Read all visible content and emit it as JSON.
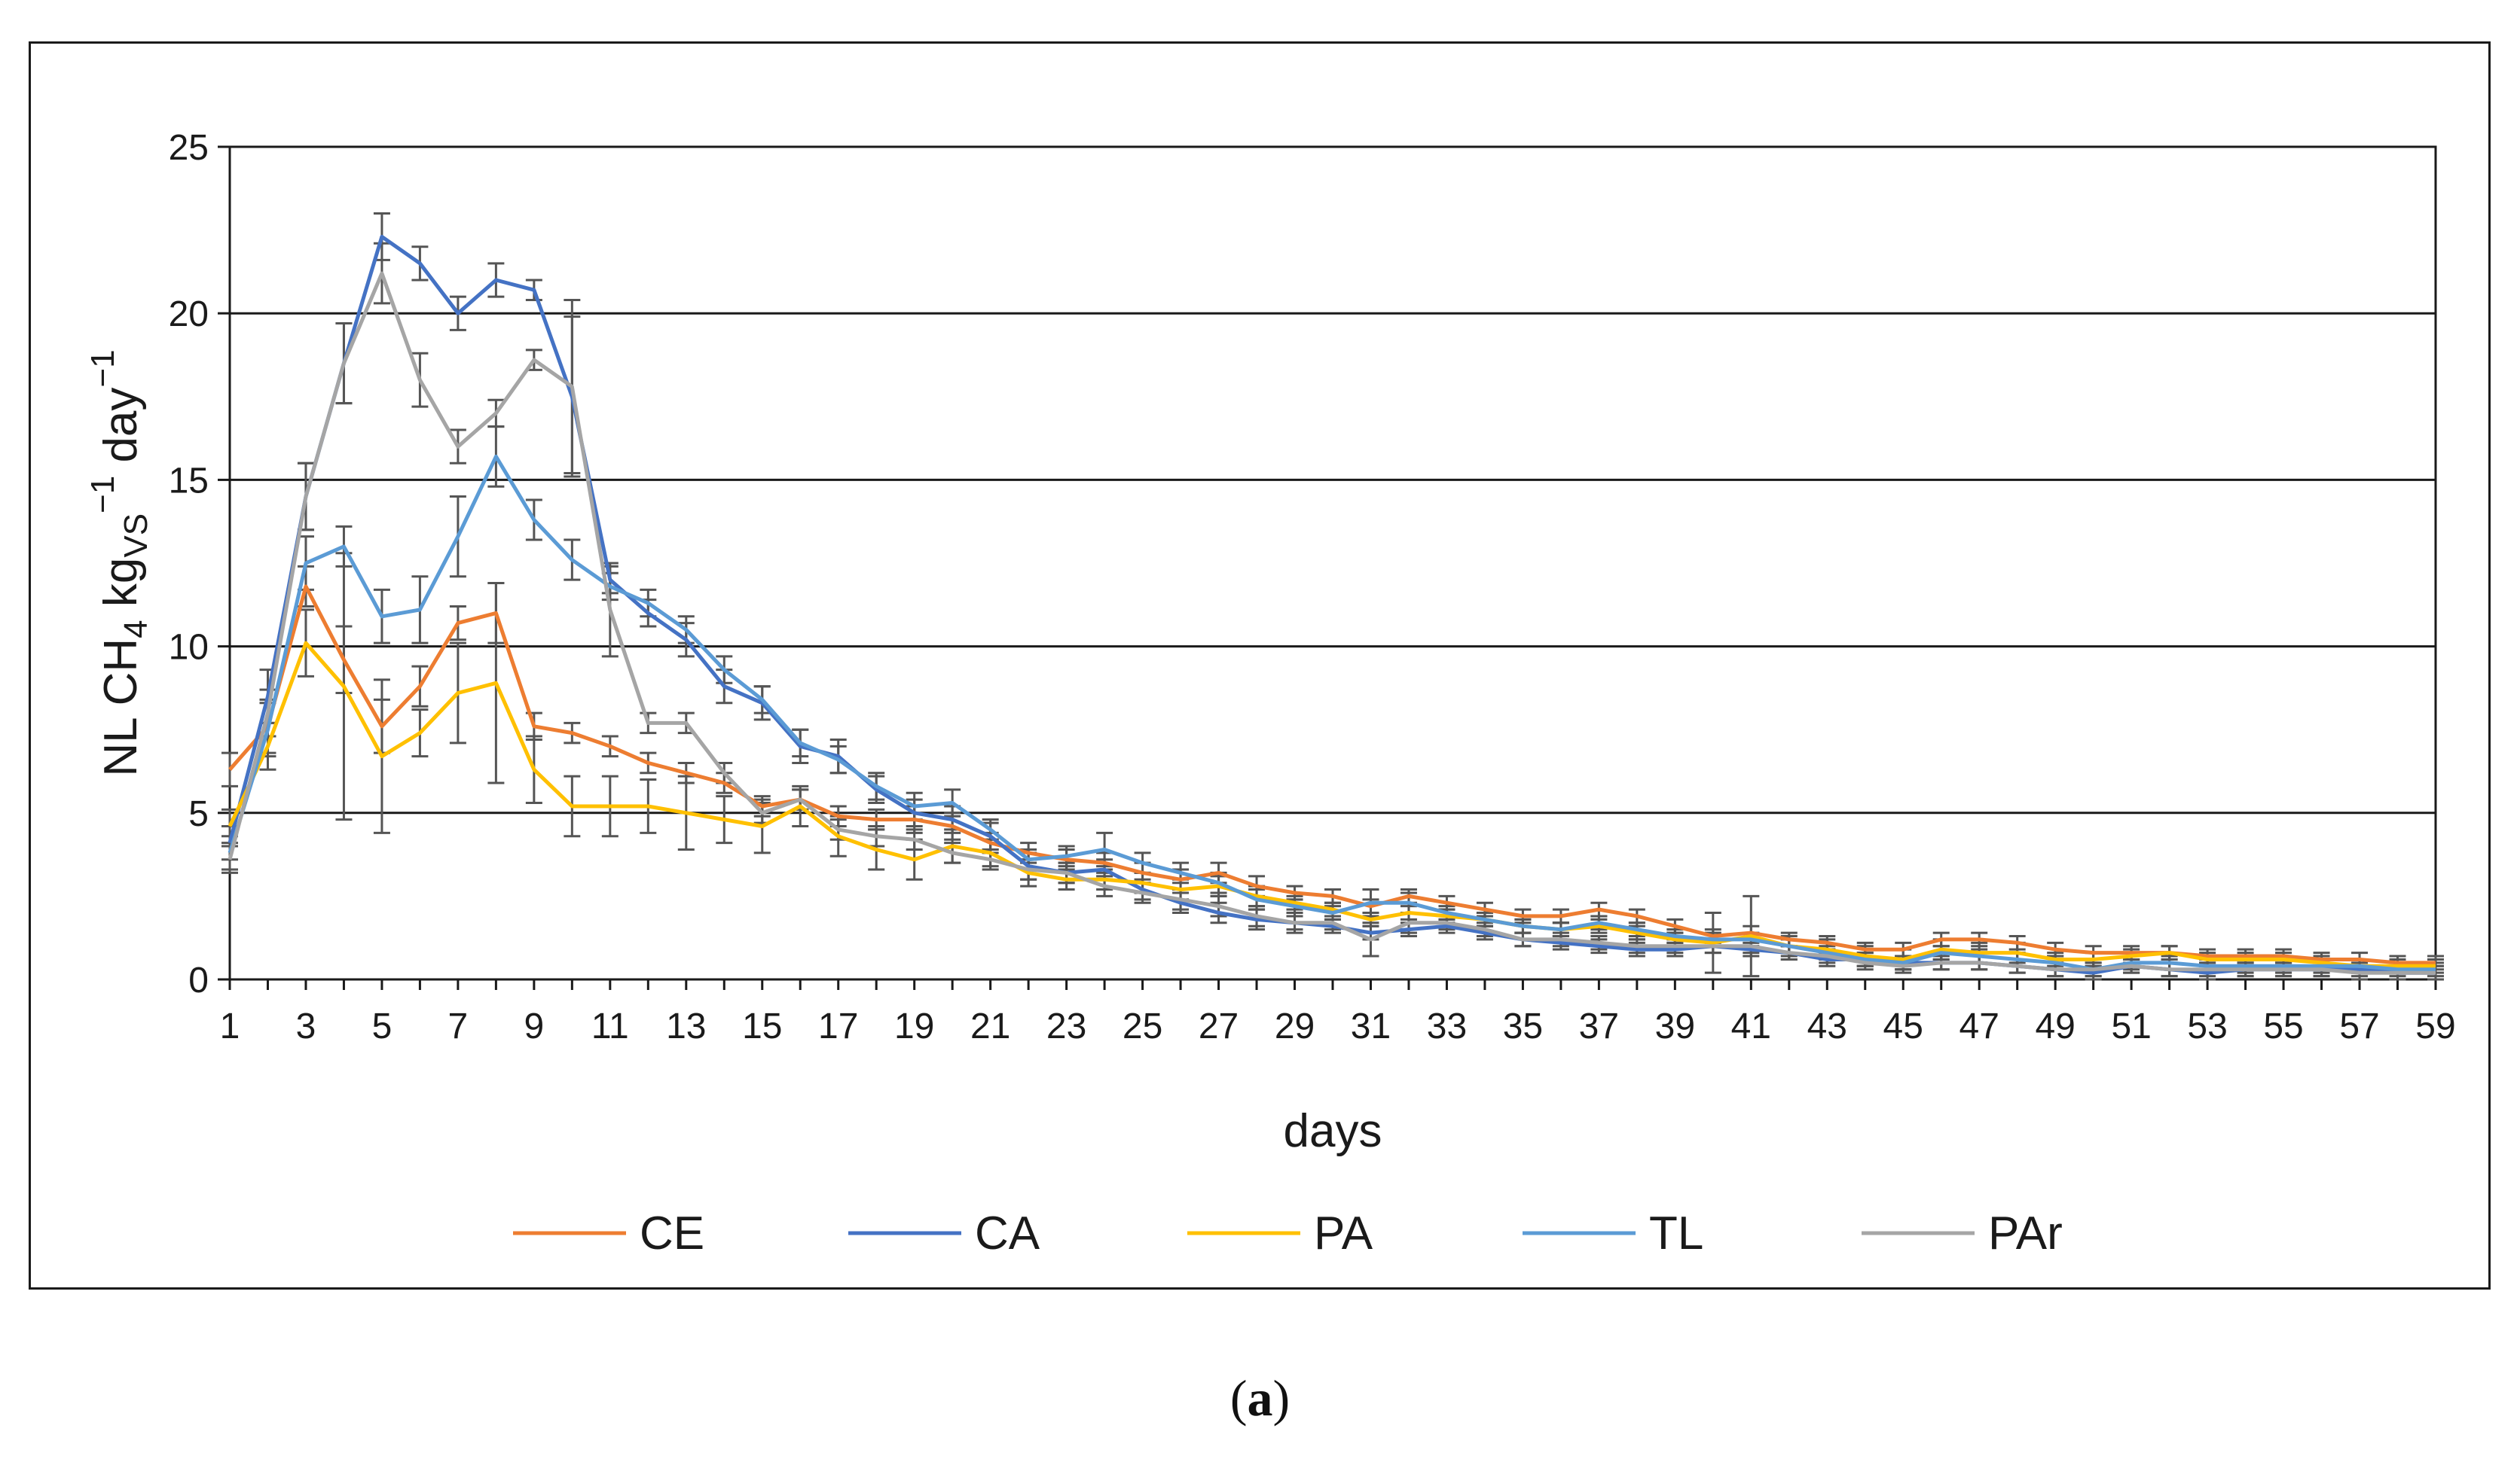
{
  "caption": {
    "open": "(",
    "letter": "a",
    "close": ")"
  },
  "chart_data": {
    "type": "line",
    "title": "",
    "xlabel": "days",
    "ylabel": {
      "parts": [
        "NL CH",
        "4",
        " kg",
        "VS",
        "−1",
        " day",
        "−1"
      ]
    },
    "ylim": [
      0,
      25
    ],
    "yticks": [
      0,
      5,
      10,
      15,
      20,
      25
    ],
    "xlim": [
      1,
      59
    ],
    "xticks": [
      1,
      3,
      5,
      7,
      9,
      11,
      13,
      15,
      17,
      19,
      21,
      23,
      25,
      27,
      29,
      31,
      33,
      35,
      37,
      39,
      41,
      43,
      45,
      47,
      49,
      51,
      53,
      55,
      57,
      59
    ],
    "grid": "horizontal",
    "legend_position": "bottom",
    "x": [
      1,
      2,
      3,
      4,
      5,
      6,
      7,
      8,
      9,
      10,
      11,
      12,
      13,
      14,
      15,
      16,
      17,
      18,
      19,
      20,
      21,
      22,
      23,
      24,
      25,
      26,
      27,
      28,
      29,
      30,
      31,
      32,
      33,
      34,
      35,
      36,
      37,
      38,
      39,
      40,
      41,
      42,
      43,
      44,
      45,
      46,
      47,
      48,
      49,
      50,
      51,
      52,
      53,
      54,
      55,
      56,
      57,
      58,
      59
    ],
    "series": [
      {
        "name": "CE",
        "color": "#ED7D31",
        "values": [
          6.3,
          7.6,
          11.8,
          9.6,
          7.6,
          8.8,
          10.7,
          11.0,
          7.6,
          7.4,
          7.0,
          6.5,
          6.2,
          5.9,
          5.2,
          5.4,
          4.9,
          4.8,
          4.8,
          4.6,
          4.1,
          3.8,
          3.6,
          3.5,
          3.2,
          3.0,
          3.2,
          2.8,
          2.6,
          2.5,
          2.2,
          2.5,
          2.3,
          2.1,
          1.9,
          1.9,
          2.1,
          1.9,
          1.6,
          1.3,
          1.4,
          1.2,
          1.1,
          0.9,
          0.9,
          1.2,
          1.2,
          1.1,
          0.9,
          0.8,
          0.8,
          0.8,
          0.7,
          0.7,
          0.7,
          0.6,
          0.6,
          0.5,
          0.5
        ],
        "errors": [
          0.5,
          0.8,
          0.6,
          1.0,
          0.8,
          0.6,
          0.5,
          0.9,
          0.4,
          0.3,
          0.3,
          0.3,
          0.3,
          0.3,
          0.3,
          0.3,
          0.3,
          0.3,
          0.4,
          0.4,
          0.3,
          0.3,
          0.3,
          0.3,
          0.3,
          0.3,
          0.3,
          0.3,
          0.2,
          0.2,
          0.2,
          0.2,
          0.2,
          0.2,
          0.2,
          0.2,
          0.2,
          0.2,
          0.2,
          0.2,
          0.2,
          0.2,
          0.2,
          0.2,
          0.2,
          0.2,
          0.2,
          0.2,
          0.2,
          0.2,
          0.2,
          0.2,
          0.2,
          0.2,
          0.2,
          0.2,
          0.2,
          0.2,
          0.2
        ]
      },
      {
        "name": "CA",
        "color": "#4472C4",
        "values": [
          4.1,
          8.5,
          14.5,
          18.5,
          22.3,
          21.5,
          20.0,
          21.0,
          20.7,
          17.5,
          12.0,
          11.0,
          10.2,
          8.8,
          8.3,
          7.0,
          6.7,
          5.7,
          5.0,
          4.8,
          4.3,
          3.4,
          3.2,
          3.3,
          2.7,
          2.3,
          2.0,
          1.8,
          1.7,
          1.6,
          1.4,
          1.5,
          1.6,
          1.4,
          1.2,
          1.1,
          1.0,
          0.9,
          0.9,
          1.0,
          0.9,
          0.8,
          0.6,
          0.6,
          0.5,
          0.5,
          0.5,
          0.4,
          0.3,
          0.2,
          0.4,
          0.3,
          0.2,
          0.3,
          0.3,
          0.3,
          0.3,
          0.2,
          0.2
        ],
        "errors": [
          0.5,
          0.8,
          1.0,
          1.2,
          0.7,
          0.5,
          0.5,
          0.5,
          0.3,
          2.4,
          0.4,
          0.4,
          0.5,
          0.5,
          0.5,
          0.5,
          0.5,
          0.4,
          0.4,
          0.4,
          0.4,
          0.4,
          0.3,
          0.3,
          0.3,
          0.3,
          0.3,
          0.3,
          0.3,
          0.2,
          0.2,
          0.2,
          0.2,
          0.2,
          0.2,
          0.2,
          0.2,
          0.2,
          0.2,
          0.2,
          0.2,
          0.2,
          0.2,
          0.2,
          0.2,
          0.2,
          0.2,
          0.2,
          0.2,
          0.2,
          0.2,
          0.2,
          0.2,
          0.2,
          0.2,
          0.2,
          0.2,
          0.2,
          0.2
        ]
      },
      {
        "name": "PA",
        "color": "#FFC000",
        "values": [
          4.6,
          7.0,
          10.1,
          8.8,
          6.7,
          7.4,
          8.6,
          8.9,
          6.3,
          5.2,
          5.2,
          5.2,
          5.0,
          4.8,
          4.6,
          5.2,
          4.3,
          3.9,
          3.6,
          4.0,
          3.8,
          3.2,
          3.0,
          3.0,
          2.9,
          2.7,
          2.8,
          2.5,
          2.3,
          2.1,
          1.8,
          2.0,
          1.9,
          1.8,
          1.6,
          1.5,
          1.6,
          1.4,
          1.2,
          1.1,
          1.3,
          1.0,
          0.9,
          0.7,
          0.6,
          0.9,
          0.8,
          0.8,
          0.6,
          0.6,
          0.7,
          0.8,
          0.6,
          0.6,
          0.6,
          0.5,
          0.4,
          0.4,
          0.4
        ],
        "errors": [
          0.5,
          0.7,
          1.0,
          4.0,
          2.3,
          0.7,
          1.5,
          3.0,
          1.0,
          0.9,
          0.9,
          0.8,
          1.1,
          0.7,
          0.8,
          0.6,
          0.6,
          0.6,
          0.6,
          0.5,
          0.4,
          0.4,
          0.3,
          0.3,
          0.3,
          0.3,
          0.3,
          0.3,
          0.2,
          0.2,
          0.2,
          0.2,
          0.2,
          0.2,
          0.2,
          0.2,
          0.2,
          0.2,
          0.2,
          0.9,
          1.2,
          0.3,
          0.3,
          0.3,
          0.3,
          0.3,
          0.3,
          0.3,
          0.2,
          0.2,
          0.2,
          0.2,
          0.2,
          0.2,
          0.2,
          0.2,
          0.2,
          0.2,
          0.2
        ]
      },
      {
        "name": "TL",
        "color": "#5B9BD5",
        "values": [
          3.8,
          7.5,
          12.5,
          13.0,
          10.9,
          11.1,
          13.3,
          15.7,
          13.8,
          12.6,
          11.8,
          11.3,
          10.5,
          9.3,
          8.4,
          7.1,
          6.6,
          5.8,
          5.2,
          5.3,
          4.5,
          3.6,
          3.7,
          3.9,
          3.5,
          3.2,
          2.9,
          2.4,
          2.2,
          2.0,
          2.3,
          2.3,
          2.0,
          1.8,
          1.6,
          1.5,
          1.7,
          1.5,
          1.3,
          1.2,
          1.2,
          1.0,
          0.8,
          0.6,
          0.5,
          0.8,
          0.7,
          0.6,
          0.5,
          0.3,
          0.5,
          0.5,
          0.4,
          0.4,
          0.4,
          0.4,
          0.4,
          0.3,
          0.3
        ],
        "errors": [
          0.5,
          0.8,
          0.8,
          0.6,
          0.8,
          1.0,
          1.2,
          0.9,
          0.6,
          0.6,
          0.4,
          0.4,
          0.4,
          0.4,
          0.4,
          0.4,
          0.4,
          0.4,
          0.4,
          0.4,
          0.3,
          0.3,
          0.3,
          0.5,
          0.3,
          0.3,
          0.3,
          0.3,
          0.2,
          0.2,
          0.4,
          0.3,
          0.2,
          0.2,
          0.2,
          0.2,
          0.2,
          0.2,
          0.2,
          0.2,
          0.2,
          0.2,
          0.2,
          0.2,
          0.2,
          0.2,
          0.2,
          0.2,
          0.2,
          0.2,
          0.2,
          0.2,
          0.2,
          0.2,
          0.2,
          0.2,
          0.2,
          0.2,
          0.2
        ]
      },
      {
        "name": "PAr",
        "color": "#A5A5A5",
        "values": [
          3.6,
          8.0,
          14.5,
          18.5,
          21.2,
          18.0,
          16.0,
          17.0,
          18.6,
          17.8,
          11.1,
          7.7,
          7.7,
          6.2,
          5.0,
          5.4,
          4.5,
          4.3,
          4.2,
          3.8,
          3.6,
          3.3,
          3.2,
          2.8,
          2.6,
          2.4,
          2.2,
          1.9,
          1.7,
          1.7,
          1.2,
          1.7,
          1.7,
          1.5,
          1.2,
          1.2,
          1.1,
          1.0,
          1.0,
          1.0,
          1.0,
          0.8,
          0.7,
          0.5,
          0.4,
          0.5,
          0.5,
          0.4,
          0.3,
          0.3,
          0.4,
          0.3,
          0.3,
          0.3,
          0.3,
          0.3,
          0.2,
          0.2,
          0.2
        ],
        "errors": [
          0.4,
          0.7,
          1.0,
          1.2,
          0.9,
          0.8,
          0.5,
          0.4,
          0.3,
          2.6,
          1.4,
          0.3,
          0.3,
          0.3,
          0.3,
          0.3,
          0.3,
          0.3,
          0.3,
          0.3,
          0.3,
          0.3,
          0.3,
          0.3,
          0.3,
          0.3,
          0.3,
          0.3,
          0.2,
          0.2,
          0.5,
          0.3,
          0.2,
          0.2,
          0.2,
          0.2,
          0.2,
          0.2,
          0.2,
          0.2,
          0.2,
          0.2,
          0.2,
          0.2,
          0.2,
          0.2,
          0.2,
          0.2,
          0.2,
          0.2,
          0.2,
          0.2,
          0.2,
          0.2,
          0.2,
          0.2,
          0.2,
          0.2,
          0.2
        ]
      }
    ]
  }
}
